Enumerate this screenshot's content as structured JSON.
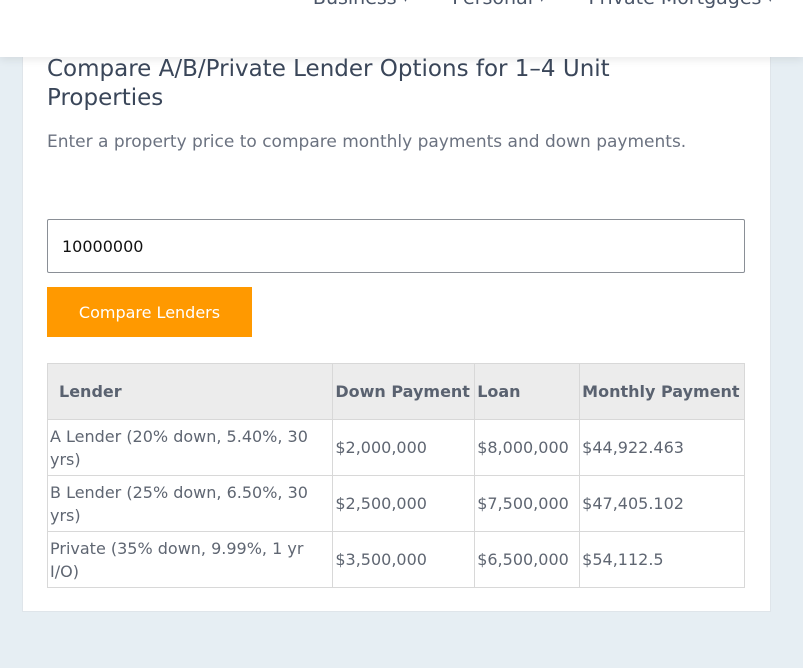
{
  "nav": {
    "items": [
      "Business",
      "Personal",
      "Private Mortgages"
    ]
  },
  "calculator": {
    "title": "Compare A/B/Private Lender Options for 1–4 Unit Properties",
    "subtitle": "Enter a property price to compare monthly payments and down payments.",
    "price_value": "10000000",
    "compare_button": "Compare Lenders",
    "table": {
      "headers": [
        "Lender",
        "Down Payment",
        "Loan",
        "Monthly Payment"
      ],
      "rows": [
        [
          "A Lender (20% down, 5.40%, 30 yrs)",
          "$2,000,000",
          "$8,000,000",
          "$44,922.463"
        ],
        [
          "B Lender (25% down, 6.50%, 30 yrs)",
          "$2,500,000",
          "$7,500,000",
          "$47,405.102"
        ],
        [
          "Private (35% down, 9.99%, 1 yr I/O)",
          "$3,500,000",
          "$6,500,000",
          "$54,112.5"
        ]
      ]
    }
  },
  "colors": {
    "accent": "#ff9900",
    "background": "#e6eef3"
  }
}
